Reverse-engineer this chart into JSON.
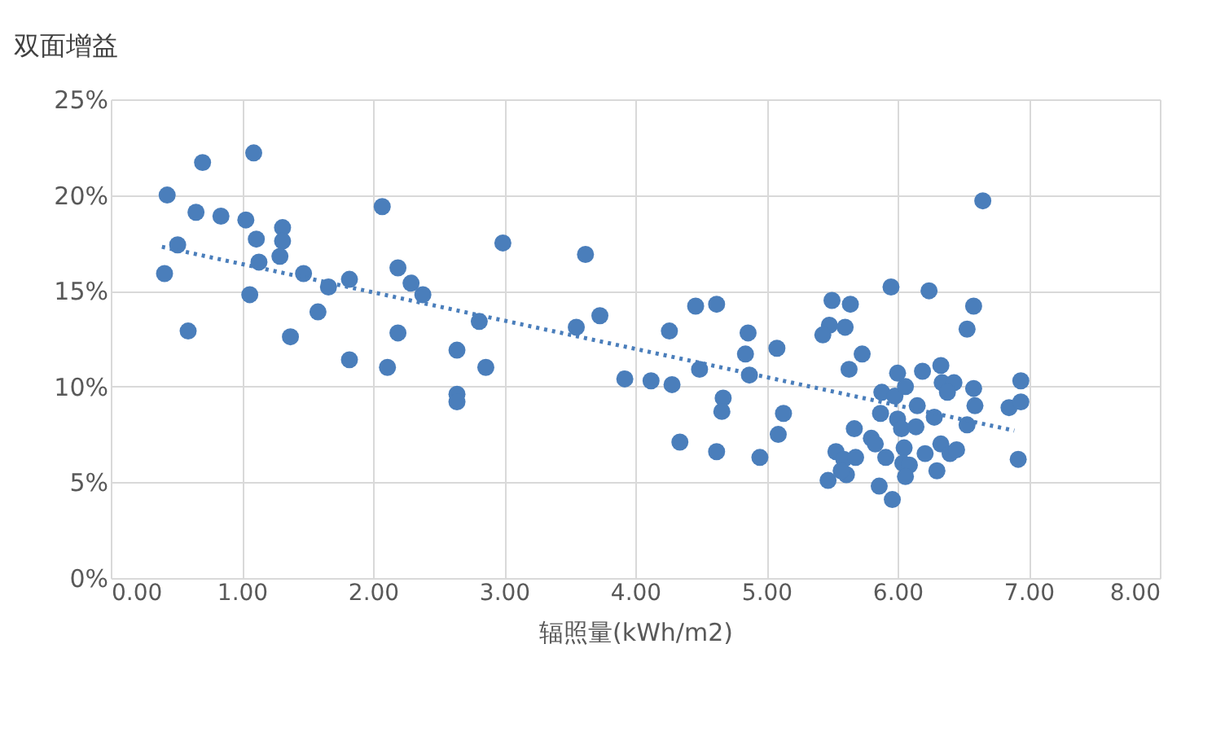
{
  "chart_data": {
    "type": "scatter",
    "ylabel": "双面增益",
    "xlabel": "辐照量(kWh/m2)",
    "xlim": [
      0,
      8
    ],
    "ylim": [
      0,
      25
    ],
    "xticks": [
      {
        "value": 0,
        "label": "0.00"
      },
      {
        "value": 1,
        "label": "1.00"
      },
      {
        "value": 2,
        "label": "2.00"
      },
      {
        "value": 3,
        "label": "3.00"
      },
      {
        "value": 4,
        "label": "4.00"
      },
      {
        "value": 5,
        "label": "5.00"
      },
      {
        "value": 6,
        "label": "6.00"
      },
      {
        "value": 7,
        "label": "7.00"
      },
      {
        "value": 8,
        "label": "8.00"
      }
    ],
    "yticks": [
      {
        "value": 0,
        "label": "0%"
      },
      {
        "value": 5,
        "label": "5%"
      },
      {
        "value": 10,
        "label": "10%"
      },
      {
        "value": 15,
        "label": "15%"
      },
      {
        "value": 20,
        "label": "20%"
      },
      {
        "value": 25,
        "label": "25%"
      }
    ],
    "grid": true,
    "series": [
      {
        "color": "#4a7ebb",
        "marker": "circle",
        "x": [
          0.43,
          0.7,
          1.09,
          0.65,
          0.84,
          1.03,
          0.51,
          0.41,
          1.11,
          1.31,
          1.31,
          1.13,
          1.29,
          1.06,
          0.59,
          1.47,
          1.66,
          1.82,
          1.58,
          1.37,
          2.07,
          2.19,
          2.29,
          2.38,
          2.19,
          1.82,
          2.11,
          2.64,
          2.86,
          2.64,
          2.64,
          2.81,
          2.99,
          3.62,
          3.55,
          3.73,
          3.92,
          4.12,
          4.28,
          4.26,
          4.46,
          4.62,
          4.49,
          4.34,
          4.62,
          4.67,
          4.66,
          4.86,
          4.84,
          4.87,
          4.95,
          5.08,
          5.13,
          5.09,
          5.5,
          5.64,
          5.48,
          5.6,
          5.43,
          5.73,
          5.63,
          5.95,
          6.24,
          6.65,
          6.58,
          6.53,
          6.0,
          5.88,
          5.98,
          6.06,
          6.19,
          6.33,
          6.34,
          6.43,
          6.38,
          6.58,
          6.59,
          6.94,
          6.85,
          6.94,
          6.92,
          6.15,
          5.87,
          6.0,
          6.03,
          6.14,
          6.28,
          6.53,
          5.67,
          5.8,
          5.83,
          6.05,
          5.91,
          6.04,
          6.09,
          6.06,
          6.21,
          6.33,
          6.4,
          6.45,
          6.3,
          5.86,
          5.96,
          5.53,
          5.59,
          5.68,
          5.47,
          5.61,
          5.57
        ],
        "values": [
          20.0,
          21.7,
          22.2,
          19.1,
          18.9,
          18.7,
          17.4,
          15.9,
          17.7,
          18.3,
          17.6,
          16.5,
          16.8,
          14.8,
          12.9,
          15.9,
          15.2,
          15.6,
          13.9,
          12.6,
          19.4,
          16.2,
          15.4,
          14.8,
          12.8,
          11.4,
          11.0,
          11.9,
          11.0,
          9.6,
          9.2,
          13.4,
          17.5,
          16.9,
          13.1,
          13.7,
          10.4,
          10.3,
          10.1,
          12.9,
          14.2,
          14.3,
          10.9,
          7.1,
          6.6,
          9.4,
          8.7,
          12.8,
          11.7,
          10.6,
          6.3,
          12.0,
          8.6,
          7.5,
          14.5,
          14.3,
          13.2,
          13.1,
          12.7,
          11.7,
          10.9,
          15.2,
          15.0,
          19.7,
          14.2,
          13.0,
          10.7,
          9.7,
          9.5,
          10.0,
          10.8,
          11.1,
          10.2,
          10.2,
          9.7,
          9.9,
          9.0,
          10.3,
          8.9,
          9.2,
          6.2,
          9.0,
          8.6,
          8.3,
          7.8,
          7.9,
          8.4,
          8.0,
          7.8,
          7.3,
          7.0,
          6.8,
          6.3,
          6.0,
          5.9,
          5.3,
          6.5,
          7.0,
          6.5,
          6.7,
          5.6,
          4.8,
          4.1,
          6.6,
          6.2,
          6.3,
          5.1,
          5.4,
          5.6
        ]
      },
      {
        "type": "line",
        "color": "#4a7ebb",
        "line_style": "dotted",
        "marker": "none",
        "x": [
          0.39,
          6.89
        ],
        "values": [
          17.3,
          7.7
        ]
      }
    ]
  }
}
